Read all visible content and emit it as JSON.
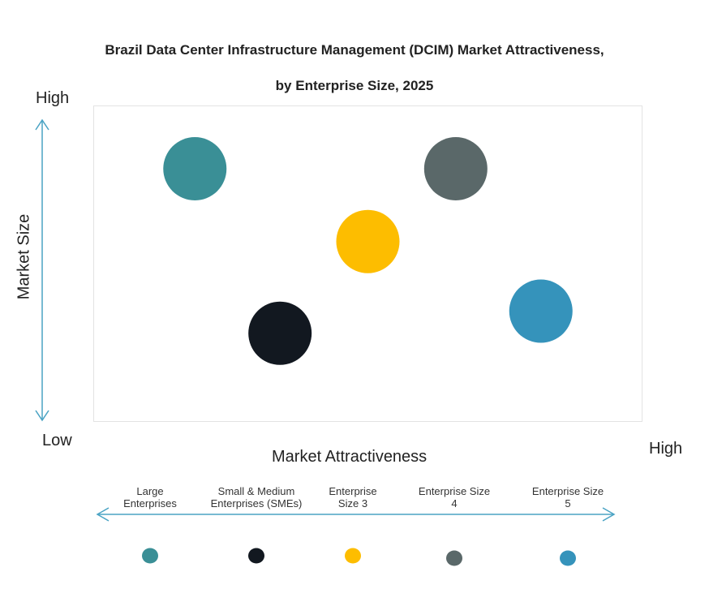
{
  "chart_data": {
    "type": "scatter",
    "title": "Brazil Data Center Infrastructure Management (DCIM) Market Attractiveness,",
    "subtitle": "by Enterprise Size, 2025",
    "xlabel": "Market Attractiveness",
    "ylabel": "Market Size",
    "x_low": "Low",
    "x_high": "High",
    "y_low": "Low",
    "y_high": "High",
    "xlim": [
      0,
      100
    ],
    "ylim": [
      0,
      100
    ],
    "grid": false,
    "legend_position": "bottom",
    "points": [
      {
        "name": "Large Enterprises",
        "x": 18.5,
        "y": 80,
        "color": "#3a8f96"
      },
      {
        "name": "Small & Medium Enterprises (SMEs)",
        "x": 34,
        "y": 28,
        "color": "#121820"
      },
      {
        "name": "Enterprise Size 3",
        "x": 50,
        "y": 57,
        "color": "#fdbd00"
      },
      {
        "name": "Enterprise Size 4",
        "x": 66,
        "y": 80,
        "color": "#5a6869"
      },
      {
        "name": "Enterprise Size 5",
        "x": 81.5,
        "y": 35,
        "color": "#3593bb"
      }
    ],
    "legend_labels": [
      [
        "Large",
        "Enterprises"
      ],
      [
        "Small & Medium",
        "Enterprises (SMEs)"
      ],
      [
        "Enterprise",
        "Size 3"
      ],
      [
        "Enterprise Size",
        "4"
      ],
      [
        "Enterprise Size",
        "5"
      ]
    ],
    "arrow_color": "#4aa3c4"
  }
}
